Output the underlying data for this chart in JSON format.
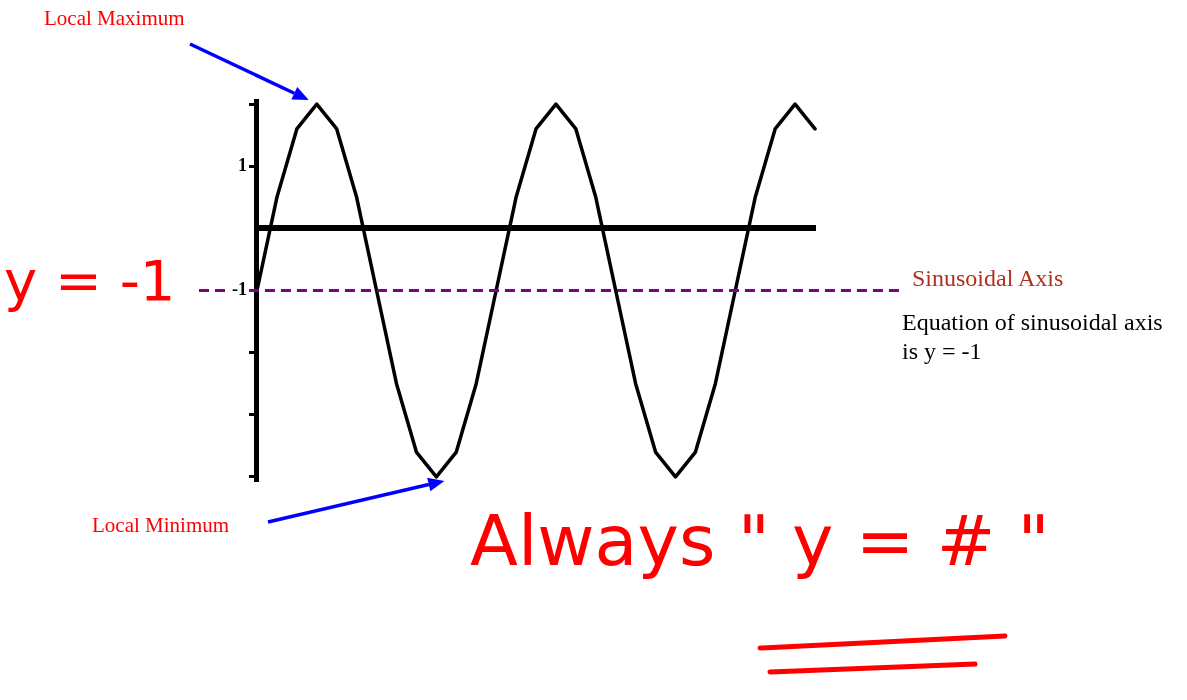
{
  "chart_data": {
    "type": "line",
    "categories": [
      null,
      null,
      null,
      null,
      null,
      null,
      null,
      null,
      null,
      null,
      null,
      null,
      null,
      null,
      null,
      null,
      null,
      null,
      null,
      null,
      null,
      null,
      null,
      null,
      null,
      null,
      null,
      null,
      null
    ],
    "series": [
      {
        "color": "#000000",
        "values": [
          -1,
          0.5,
          1.6,
          2,
          1.6,
          0.5,
          -1,
          -2.5,
          -3.6,
          -4,
          -3.6,
          -2.5,
          -1,
          0.5,
          1.6,
          2,
          1.6,
          0.5,
          -1,
          -2.5,
          -3.6,
          -4,
          -3.6,
          -2.5,
          -1,
          0.5,
          1.6,
          2,
          1.6
        ]
      }
    ],
    "ylim": [
      -4.05,
      2.05
    ],
    "yticks": [
      {
        "value": 2,
        "label": null
      },
      1,
      {
        "value": -1,
        "label": "-1"
      },
      {
        "value": -2,
        "label": null
      },
      {
        "value": -3,
        "label": null
      },
      {
        "value": -4,
        "label": null
      }
    ],
    "ref_lines": [
      {
        "axis": "y",
        "value": -1,
        "label": "Sinusoidal Axis",
        "color": "#800080",
        "line_style": "dashed"
      }
    ],
    "annotations": [
      "Local Maximum",
      "Local Minimum",
      "Equation of sinusoidal axis is y = -1",
      "y = -1",
      "Always \" y = # \""
    ],
    "grid": false,
    "legend": false,
    "marker": "none",
    "line_style": "solid"
  }
}
